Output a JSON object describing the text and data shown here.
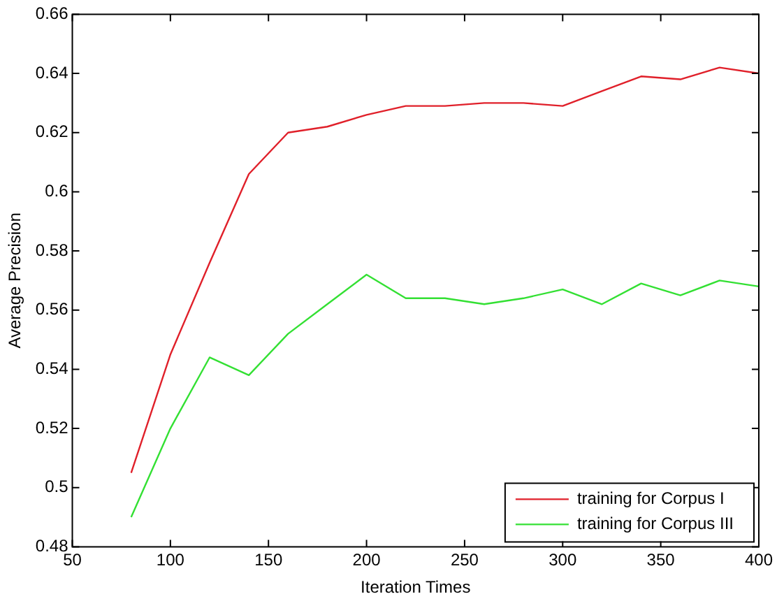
{
  "chart_data": {
    "type": "line",
    "xlabel": "Iteration Times",
    "ylabel": "Average Precision",
    "x": [
      80,
      100,
      120,
      140,
      160,
      180,
      200,
      220,
      240,
      260,
      280,
      300,
      320,
      340,
      360,
      380,
      400
    ],
    "series": [
      {
        "name": "training for Corpus I",
        "color": "#e0202a",
        "values": [
          0.505,
          0.545,
          0.576,
          0.606,
          0.62,
          0.622,
          0.626,
          0.629,
          0.629,
          0.63,
          0.63,
          0.629,
          0.634,
          0.639,
          0.638,
          0.642,
          0.64
        ]
      },
      {
        "name": "training for Corpus III",
        "color": "#33e033",
        "values": [
          0.49,
          0.52,
          0.544,
          0.538,
          0.552,
          0.562,
          0.572,
          0.564,
          0.564,
          0.562,
          0.564,
          0.567,
          0.562,
          0.569,
          0.565,
          0.57,
          0.568
        ]
      }
    ],
    "xlim": [
      50,
      400
    ],
    "xticks": [
      50,
      100,
      150,
      200,
      250,
      300,
      350,
      400
    ],
    "ylim": [
      0.48,
      0.66
    ],
    "yticks": [
      0.48,
      0.5,
      0.52,
      0.54,
      0.56,
      0.58,
      0.6,
      0.62,
      0.64,
      0.66
    ],
    "grid": false,
    "legend": "bottom right",
    "marker": "none",
    "line_style": "solid"
  }
}
